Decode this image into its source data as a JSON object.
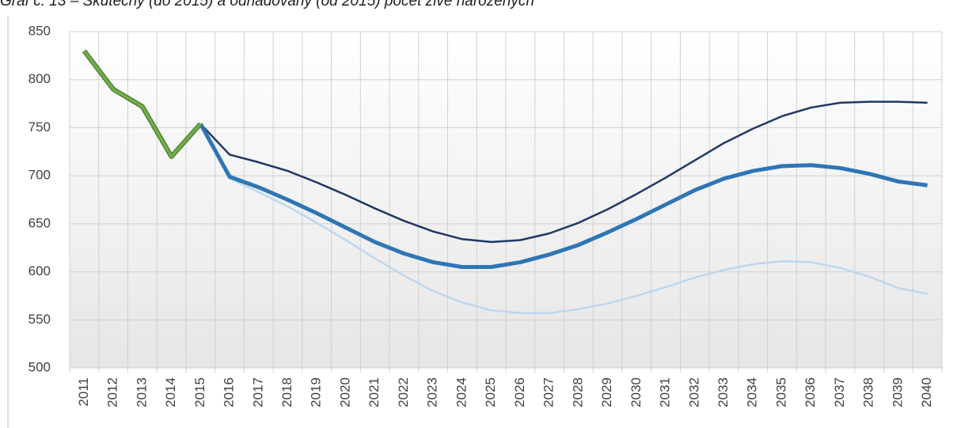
{
  "chart_data": {
    "type": "line",
    "title": "Graf č. 13 – Skutečný (do 2015) a odhadovaný (od 2015) počet živě narozených",
    "categories": [
      "2011",
      "2012",
      "2013",
      "2014",
      "2015",
      "2016",
      "2017",
      "2018",
      "2019",
      "2020",
      "2021",
      "2022",
      "2023",
      "2024",
      "2025",
      "2026",
      "2027",
      "2028",
      "2029",
      "2030",
      "2031",
      "2032",
      "2033",
      "2034",
      "2035",
      "2036",
      "2037",
      "2038",
      "2039",
      "2040"
    ],
    "series": [
      {
        "color": "#1f3864",
        "values": [
          null,
          null,
          null,
          null,
          754,
          722,
          714,
          705,
          693,
          680,
          666,
          653,
          642,
          634,
          631,
          633,
          640,
          651,
          665,
          681,
          698,
          716,
          734,
          749,
          762,
          771,
          776,
          777,
          777,
          776
        ]
      },
      {
        "color": "#bdd7ee",
        "values": [
          null,
          null,
          null,
          null,
          754,
          697,
          683,
          668,
          651,
          633,
          614,
          596,
          580,
          568,
          560,
          557,
          557,
          561,
          567,
          575,
          584,
          594,
          602,
          608,
          611,
          610,
          604,
          595,
          583,
          577
        ]
      },
      {
        "color": "#2e75b6",
        "values": [
          null,
          null,
          null,
          null,
          754,
          699,
          688,
          675,
          661,
          646,
          631,
          619,
          610,
          605,
          605,
          610,
          618,
          628,
          641,
          655,
          670,
          685,
          697,
          705,
          710,
          711,
          708,
          702,
          694,
          690
        ]
      },
      {
        "color": "#70ad47",
        "values": [
          830,
          790,
          772,
          720,
          754,
          null,
          null,
          null,
          null,
          null,
          null,
          null,
          null,
          null,
          null,
          null,
          null,
          null,
          null,
          null,
          null,
          null,
          null,
          null,
          null,
          null,
          null,
          null,
          null,
          null
        ]
      }
    ],
    "ylim": [
      500,
      850
    ],
    "yticks": [
      500,
      550,
      600,
      650,
      700,
      750,
      800,
      850
    ],
    "grid": true
  }
}
